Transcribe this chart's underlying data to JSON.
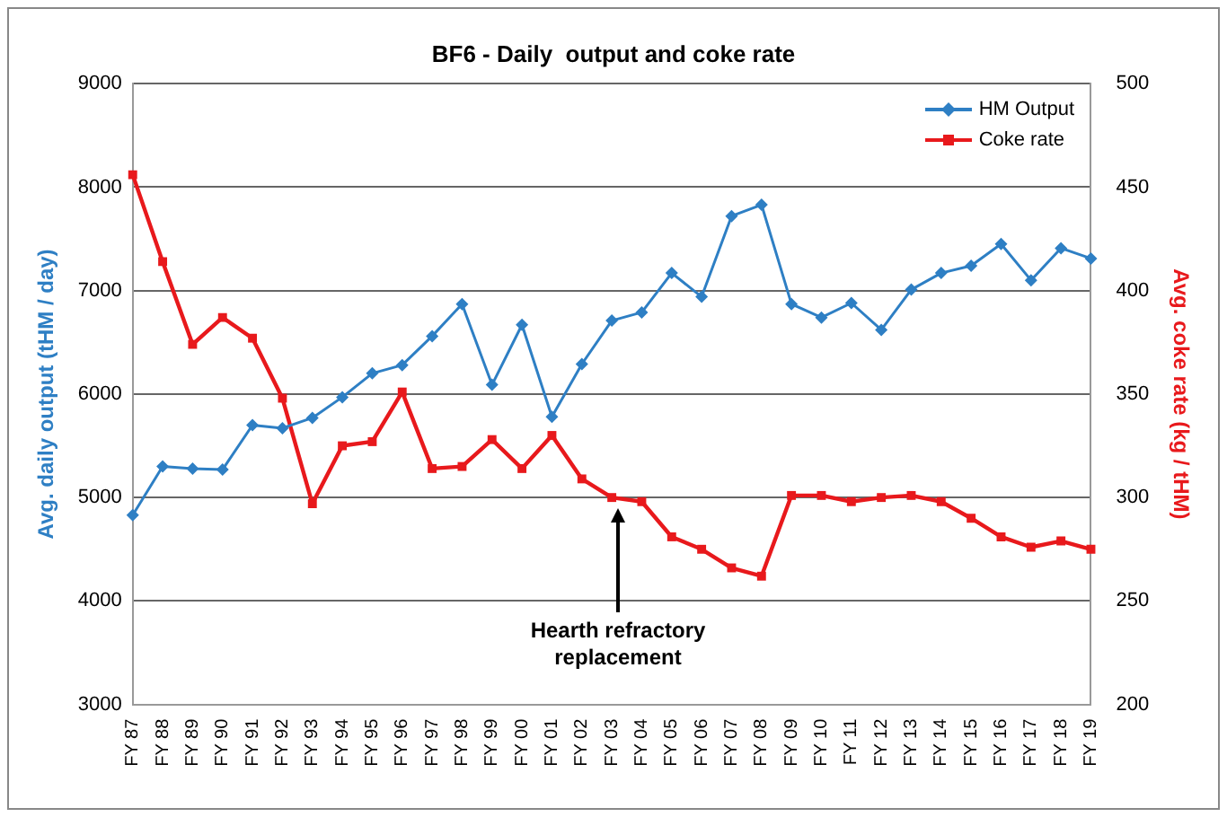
{
  "chart_data": {
    "type": "line",
    "title": "BF6 - Daily  output and coke rate",
    "ylabel": "Avg. daily output (tHM / day)",
    "y2label": "Avg. coke rate (kg / tHM)",
    "categories": [
      "FY 87",
      "FY 88",
      "FY 89",
      "FY 90",
      "FY 91",
      "FY 92",
      "FY 93",
      "FY 94",
      "FY 95",
      "FY 96",
      "FY 97",
      "FY 98",
      "FY 99",
      "FY 00",
      "FY 01",
      "FY 02",
      "FY 03",
      "FY 04",
      "FY 05",
      "FY 06",
      "FY 07",
      "FY 08",
      "FY 09",
      "FY 10",
      "FY 11",
      "FY 12",
      "FY 13",
      "FY 14",
      "FY 15",
      "FY 16",
      "FY 17",
      "FY 18",
      "FY 19"
    ],
    "series": [
      {
        "name": "HM Output",
        "color": "#2e7fc4",
        "marker": "diamond",
        "values": [
          4830,
          5300,
          5280,
          5270,
          5700,
          5670,
          5770,
          5970,
          6200,
          6280,
          6560,
          6870,
          6090,
          6670,
          5780,
          6290,
          6710,
          6790,
          7170,
          6940,
          7720,
          7830,
          6870,
          6740,
          6880,
          6620,
          7010,
          7170,
          7240,
          7450,
          7100,
          7410,
          7310
        ]
      },
      {
        "name": "Coke rate",
        "color": "#e8191c",
        "marker": "square",
        "axis": "y2",
        "values": [
          456,
          414,
          374,
          387,
          377,
          348,
          297,
          325,
          327,
          351,
          314,
          315,
          328,
          314,
          330,
          309,
          300,
          298,
          281,
          275,
          266,
          262,
          301,
          301,
          298,
          300,
          301,
          298,
          290,
          281,
          276,
          279,
          275
        ]
      }
    ],
    "ylim": [
      3000,
      9000
    ],
    "yticks": [
      3000,
      4000,
      5000,
      6000,
      7000,
      8000,
      9000
    ],
    "y2lim": [
      200,
      500
    ],
    "y2ticks": [
      200,
      250,
      300,
      350,
      400,
      450,
      500
    ],
    "grid": "y",
    "legend": "top right",
    "annotations": [
      "Hearth refractory replacement"
    ]
  }
}
